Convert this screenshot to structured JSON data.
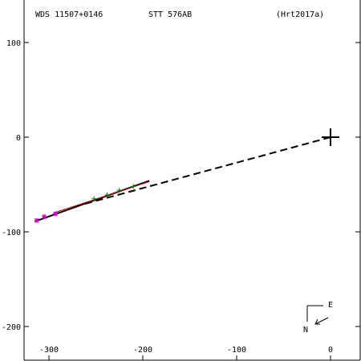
{
  "header": {
    "wds": "WDS 11507+0146",
    "pair": "STT 576AB",
    "ref": "(Hrt2017a)"
  },
  "compass": {
    "east": "E",
    "north": "N"
  },
  "chart_data": {
    "type": "scatter",
    "xlim": [
      -330,
      30
    ],
    "ylim": [
      -235,
      140
    ],
    "x_ticks": [
      {
        "value": -300,
        "label": "-300"
      },
      {
        "value": -200,
        "label": "-200"
      },
      {
        "value": -100,
        "label": "-100"
      },
      {
        "value": 0,
        "label": "0"
      }
    ],
    "y_ticks": [
      {
        "value": 100,
        "label": "100"
      },
      {
        "value": 0,
        "label": "0"
      },
      {
        "value": -100,
        "label": "-100"
      },
      {
        "value": -200,
        "label": "-200"
      }
    ],
    "primary": {
      "x": 0,
      "y": 0
    },
    "dashed_line": [
      [
        0,
        0
      ],
      [
        -275,
        -74
      ]
    ],
    "orbit_line_black": [
      [
        -315,
        -89
      ],
      [
        -193,
        -46
      ]
    ],
    "orbit_line_red": [
      [
        -295,
        -80
      ],
      [
        -193,
        -47
      ]
    ],
    "observations_green": [
      [
        -252,
        -65
      ],
      [
        -238,
        -61
      ],
      [
        -225,
        -56
      ],
      [
        -210,
        -52
      ]
    ],
    "observations_magenta": [
      [
        -313,
        -88
      ],
      [
        -305,
        -84
      ],
      [
        -293,
        -81
      ]
    ],
    "colors": {
      "axes": "#000000",
      "orbit": "#000000",
      "fit": "#d40000",
      "green": "#008000",
      "magenta": "#cc00cc"
    }
  }
}
